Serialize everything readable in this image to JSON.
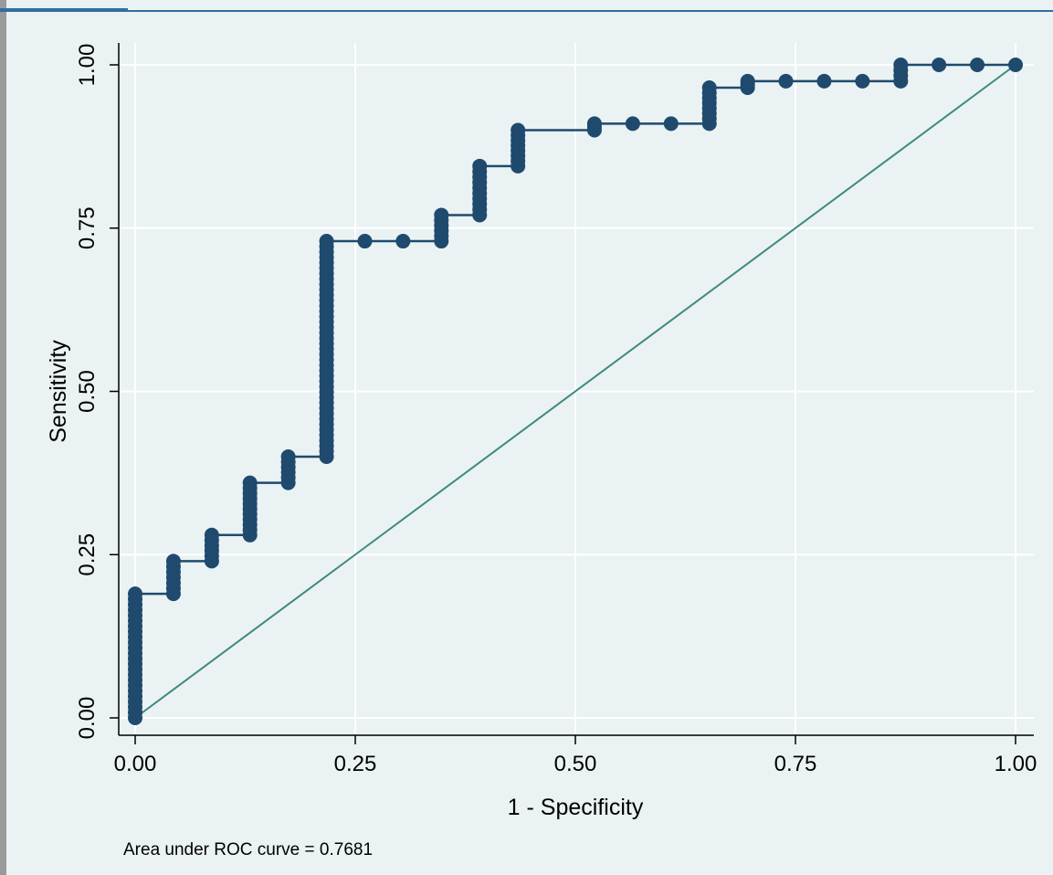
{
  "chart_data": {
    "type": "line",
    "xlabel": "1 - Specificity",
    "ylabel": "Sensitivity",
    "xlim": [
      0,
      1
    ],
    "ylim": [
      0,
      1
    ],
    "xticks": [
      "0.00",
      "0.25",
      "0.50",
      "0.75",
      "1.00"
    ],
    "yticks": [
      "0.00",
      "0.25",
      "0.50",
      "0.75",
      "1.00"
    ],
    "grid": true,
    "note": "Area under ROC curve = 0.7681",
    "colors": {
      "curve": "#1f4a6e",
      "reference": "#3d8a7e",
      "plot_region": "#eaf2f3",
      "gridline": "#ffffff"
    },
    "series": [
      {
        "x": [
          0.0,
          0.0,
          0.0435,
          0.0435,
          0.087,
          0.087,
          0.1304,
          0.1304,
          0.1739,
          0.1739,
          0.2174,
          0.2174,
          0.2609,
          0.3043,
          0.3478,
          0.3478,
          0.3913,
          0.3913,
          0.4348,
          0.4348,
          0.5217,
          0.5217,
          0.5652,
          0.6087,
          0.6522,
          0.6522,
          0.6957,
          0.6957,
          0.7391,
          0.7826,
          0.8261,
          0.8696,
          0.8696,
          0.913,
          0.9565,
          1.0
        ],
        "y": [
          0.0,
          0.19,
          0.19,
          0.24,
          0.24,
          0.28,
          0.28,
          0.36,
          0.36,
          0.4,
          0.4,
          0.73,
          0.73,
          0.73,
          0.73,
          0.77,
          0.77,
          0.845,
          0.845,
          0.9,
          0.9,
          0.91,
          0.91,
          0.91,
          0.91,
          0.965,
          0.965,
          0.975,
          0.975,
          0.975,
          0.975,
          0.975,
          1.0,
          1.0,
          1.0,
          1.0
        ]
      },
      {
        "x": [
          0,
          1
        ],
        "y": [
          0,
          1
        ]
      }
    ]
  }
}
